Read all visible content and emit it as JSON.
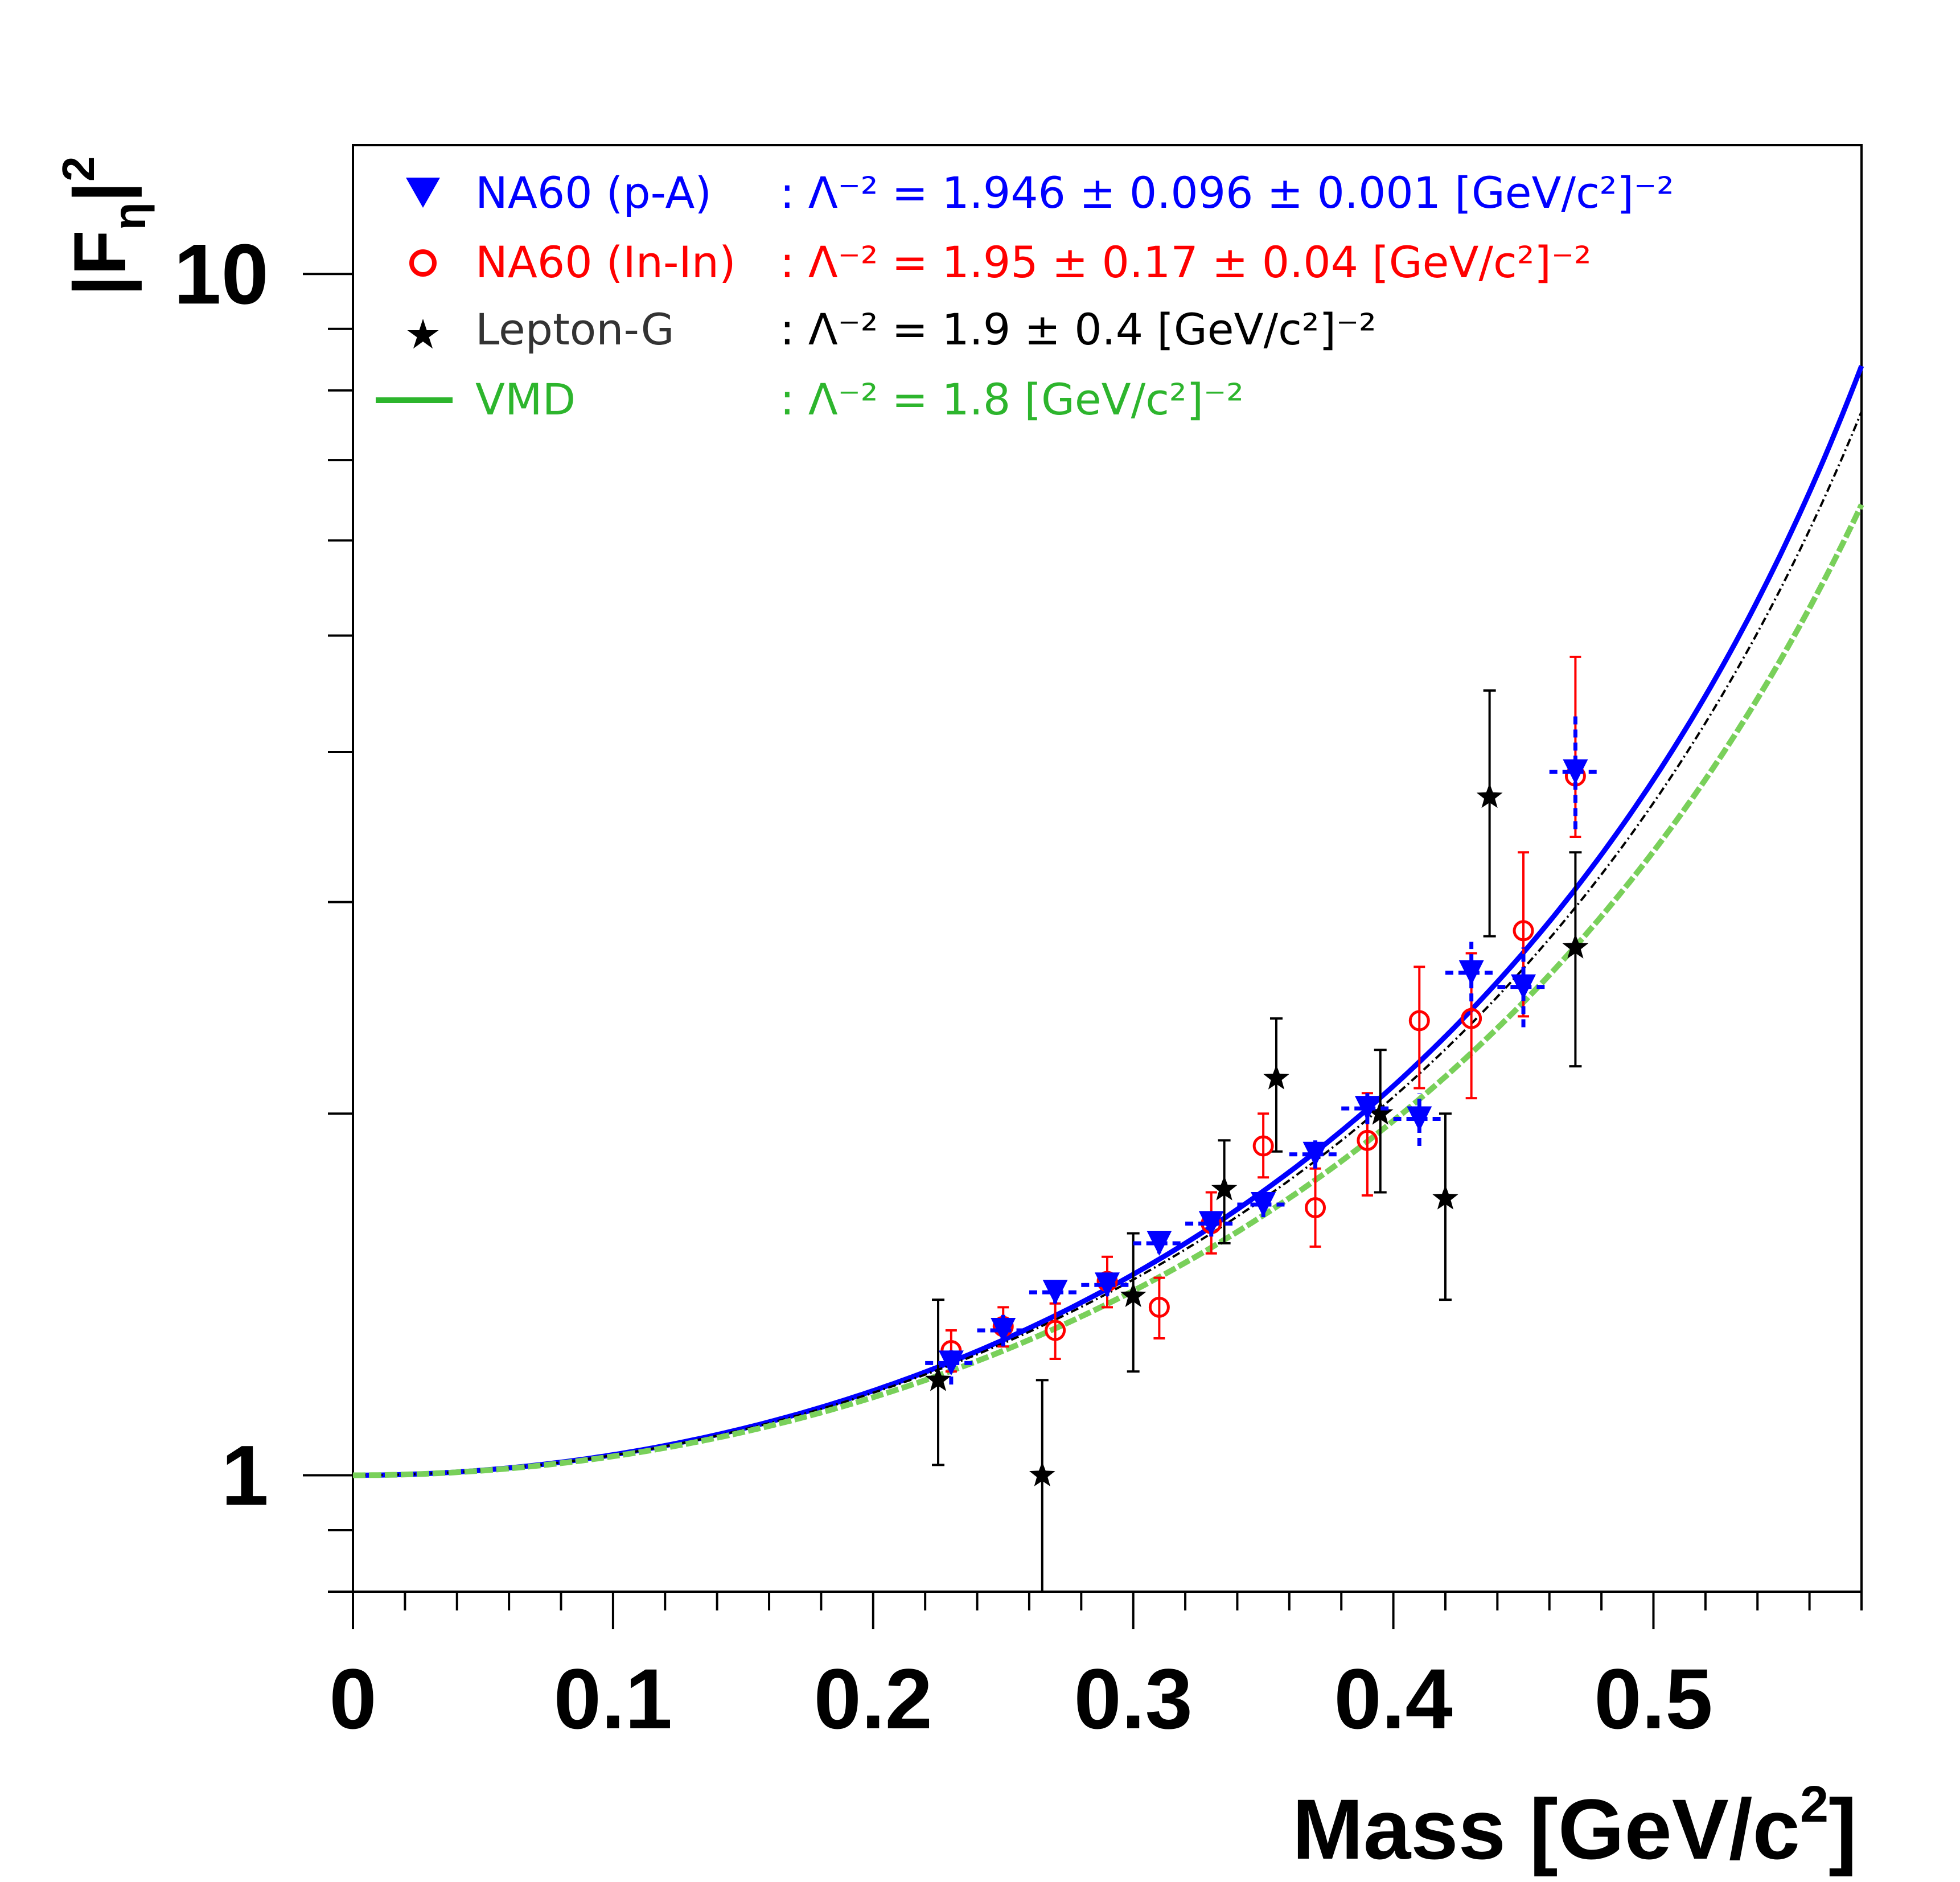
{
  "chart_data": {
    "type": "scatter",
    "title": "",
    "xlabel": "Mass  [GeV/c²]",
    "ylabel": "|F_η|²",
    "ylabel_main": "|F",
    "ylabel_sub": "η",
    "ylabel_sup_bar": "|",
    "ylabel_sup": "2",
    "xlabel_main": "Mass  [GeV/c",
    "xlabel_sup": "2",
    "xlabel_end": "]",
    "xlim": [
      0,
      0.58
    ],
    "ylim": [
      0.8,
      12.8
    ],
    "yscale": "log",
    "x_tick_labels": [
      "0",
      "0.1",
      "0.2",
      "0.3",
      "0.4",
      "0.5"
    ],
    "x_tick_values": [
      0,
      0.1,
      0.2,
      0.3,
      0.4,
      0.5
    ],
    "y_tick_labels": [
      "1",
      "10"
    ],
    "y_tick_values": [
      1,
      10
    ],
    "colors": {
      "blue": "#0000ff",
      "red": "#ff0000",
      "black": "#000000",
      "green": "#2db52d",
      "green_curve": "#79d05a"
    },
    "legend": [
      {
        "marker": "triangle-down",
        "label": "NA60 (p-A)",
        "value": ": Λ⁻² = 1.946 ± 0.096 ± 0.001 [GeV/c²]⁻²",
        "color": "#0000ff"
      },
      {
        "marker": "open-circle",
        "label": "NA60 (In-In)",
        "value": ": Λ⁻² = 1.95 ± 0.17 ± 0.04 [GeV/c²]⁻²",
        "color": "#ff0000"
      },
      {
        "marker": "star",
        "label": "Lepton-G",
        "value": ": Λ⁻² = 1.9 ± 0.4 [GeV/c²]⁻²",
        "color": "#000000",
        "label_color": "#333333"
      },
      {
        "marker": "line",
        "label": "VMD",
        "value": ": Λ⁻² = 1.8 [GeV/c²]⁻²",
        "color": "#2db52d"
      }
    ],
    "curves": [
      {
        "name": "NA60 (p-A) fit",
        "lambda_inv2": 1.946,
        "color": "#0000ff",
        "style": "solid"
      },
      {
        "name": "Lepton-G fit",
        "lambda_inv2": 1.9,
        "color": "#000000",
        "style": "dashdot"
      },
      {
        "name": "VMD",
        "lambda_inv2": 1.8,
        "color": "#79d05a",
        "style": "dashed"
      }
    ],
    "series": [
      {
        "name": "NA60 (p-A)",
        "marker": "triangle-down",
        "color": "#0000ff",
        "points": [
          {
            "x": 0.23,
            "y": 1.24,
            "xerr": 0.01,
            "ylo": 1.19,
            "yhi": 1.28
          },
          {
            "x": 0.25,
            "y": 1.32,
            "xerr": 0.01,
            "ylo": 1.28,
            "yhi": 1.36
          },
          {
            "x": 0.27,
            "y": 1.42,
            "xerr": 0.01,
            "ylo": 1.39,
            "yhi": 1.46
          },
          {
            "x": 0.29,
            "y": 1.44,
            "xerr": 0.01,
            "ylo": 1.41,
            "yhi": 1.48
          },
          {
            "x": 0.31,
            "y": 1.56,
            "xerr": 0.01,
            "ylo": 1.53,
            "yhi": 1.6
          },
          {
            "x": 0.33,
            "y": 1.62,
            "xerr": 0.01,
            "ylo": 1.58,
            "yhi": 1.66
          },
          {
            "x": 0.35,
            "y": 1.68,
            "xerr": 0.01,
            "ylo": 1.64,
            "yhi": 1.72
          },
          {
            "x": 0.37,
            "y": 1.85,
            "xerr": 0.01,
            "ylo": 1.8,
            "yhi": 1.9
          },
          {
            "x": 0.39,
            "y": 2.02,
            "xerr": 0.01,
            "ylo": 1.96,
            "yhi": 2.08
          },
          {
            "x": 0.41,
            "y": 1.98,
            "xerr": 0.01,
            "ylo": 1.88,
            "yhi": 2.08
          },
          {
            "x": 0.43,
            "y": 2.62,
            "xerr": 0.01,
            "ylo": 2.48,
            "yhi": 2.78
          },
          {
            "x": 0.45,
            "y": 2.55,
            "xerr": 0.01,
            "ylo": 2.36,
            "yhi": 2.75
          },
          {
            "x": 0.47,
            "y": 3.85,
            "xerr": 0.01,
            "ylo": 3.45,
            "yhi": 4.3
          }
        ]
      },
      {
        "name": "NA60 (In-In)",
        "marker": "open-circle",
        "color": "#ff0000",
        "points": [
          {
            "x": 0.23,
            "y": 1.27,
            "ylo": 1.22,
            "yhi": 1.32
          },
          {
            "x": 0.25,
            "y": 1.33,
            "ylo": 1.28,
            "yhi": 1.38
          },
          {
            "x": 0.27,
            "y": 1.32,
            "ylo": 1.25,
            "yhi": 1.39
          },
          {
            "x": 0.29,
            "y": 1.45,
            "ylo": 1.38,
            "yhi": 1.52
          },
          {
            "x": 0.31,
            "y": 1.38,
            "ylo": 1.3,
            "yhi": 1.46
          },
          {
            "x": 0.33,
            "y": 1.62,
            "ylo": 1.53,
            "yhi": 1.72
          },
          {
            "x": 0.35,
            "y": 1.88,
            "ylo": 1.77,
            "yhi": 2.0
          },
          {
            "x": 0.37,
            "y": 1.67,
            "ylo": 1.55,
            "yhi": 1.8
          },
          {
            "x": 0.39,
            "y": 1.9,
            "ylo": 1.71,
            "yhi": 2.08
          },
          {
            "x": 0.41,
            "y": 2.39,
            "ylo": 2.1,
            "yhi": 2.65
          },
          {
            "x": 0.43,
            "y": 2.4,
            "ylo": 2.06,
            "yhi": 2.72
          },
          {
            "x": 0.45,
            "y": 2.84,
            "ylo": 2.41,
            "yhi": 3.3
          },
          {
            "x": 0.47,
            "y": 3.82,
            "ylo": 3.4,
            "yhi": 4.8
          }
        ]
      },
      {
        "name": "Lepton-G",
        "marker": "star",
        "color": "#000000",
        "points": [
          {
            "x": 0.225,
            "y": 1.2,
            "ylo": 1.02,
            "yhi": 1.4
          },
          {
            "x": 0.265,
            "y": 1.0,
            "ylo": 0.8,
            "yhi": 1.2
          },
          {
            "x": 0.3,
            "y": 1.41,
            "ylo": 1.22,
            "yhi": 1.59
          },
          {
            "x": 0.335,
            "y": 1.73,
            "ylo": 1.56,
            "yhi": 1.9
          },
          {
            "x": 0.355,
            "y": 2.14,
            "ylo": 1.86,
            "yhi": 2.4
          },
          {
            "x": 0.395,
            "y": 2.0,
            "ylo": 1.72,
            "yhi": 2.26
          },
          {
            "x": 0.42,
            "y": 1.7,
            "ylo": 1.4,
            "yhi": 2.0
          },
          {
            "x": 0.437,
            "y": 3.67,
            "ylo": 2.81,
            "yhi": 4.5
          },
          {
            "x": 0.47,
            "y": 2.75,
            "ylo": 2.19,
            "yhi": 3.3
          }
        ]
      }
    ]
  }
}
